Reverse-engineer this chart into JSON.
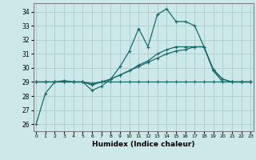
{
  "title": "",
  "xlabel": "Humidex (Indice chaleur)",
  "background_color": "#cce8e8",
  "grid_color": "#aacccc",
  "line_color": "#1a6b6b",
  "x_ticks": [
    0,
    1,
    2,
    3,
    4,
    5,
    6,
    7,
    8,
    9,
    10,
    11,
    12,
    13,
    14,
    15,
    16,
    17,
    18,
    19,
    20,
    21,
    22,
    23
  ],
  "y_ticks": [
    26,
    27,
    28,
    29,
    30,
    31,
    32,
    33,
    34
  ],
  "xlim": [
    -0.3,
    23.3
  ],
  "ylim": [
    25.5,
    34.6
  ],
  "series": [
    [
      26.0,
      28.2,
      29.0,
      29.0,
      29.0,
      29.0,
      28.4,
      28.7,
      29.2,
      30.1,
      31.2,
      32.8,
      31.5,
      33.8,
      34.2,
      33.3,
      33.3,
      33.0,
      31.5,
      29.8,
      29.0,
      29.0,
      29.0,
      29.0
    ],
    [
      29.0,
      29.0,
      29.0,
      29.0,
      29.0,
      29.0,
      28.9,
      29.0,
      29.0,
      29.0,
      29.0,
      29.0,
      29.0,
      29.0,
      29.0,
      29.0,
      29.0,
      29.0,
      29.0,
      29.0,
      29.0,
      29.0,
      29.0,
      29.0
    ],
    [
      29.0,
      29.0,
      29.0,
      29.0,
      29.0,
      29.0,
      28.8,
      29.0,
      29.2,
      29.5,
      29.8,
      30.1,
      30.4,
      30.7,
      31.0,
      31.2,
      31.3,
      31.5,
      31.5,
      29.8,
      29.2,
      29.0,
      29.0,
      29.0
    ],
    [
      29.0,
      29.0,
      29.0,
      29.1,
      29.0,
      29.0,
      28.8,
      29.0,
      29.2,
      29.5,
      29.8,
      30.2,
      30.5,
      31.0,
      31.3,
      31.5,
      31.5,
      31.5,
      31.5,
      29.9,
      29.2,
      29.0,
      29.0,
      29.0
    ]
  ]
}
